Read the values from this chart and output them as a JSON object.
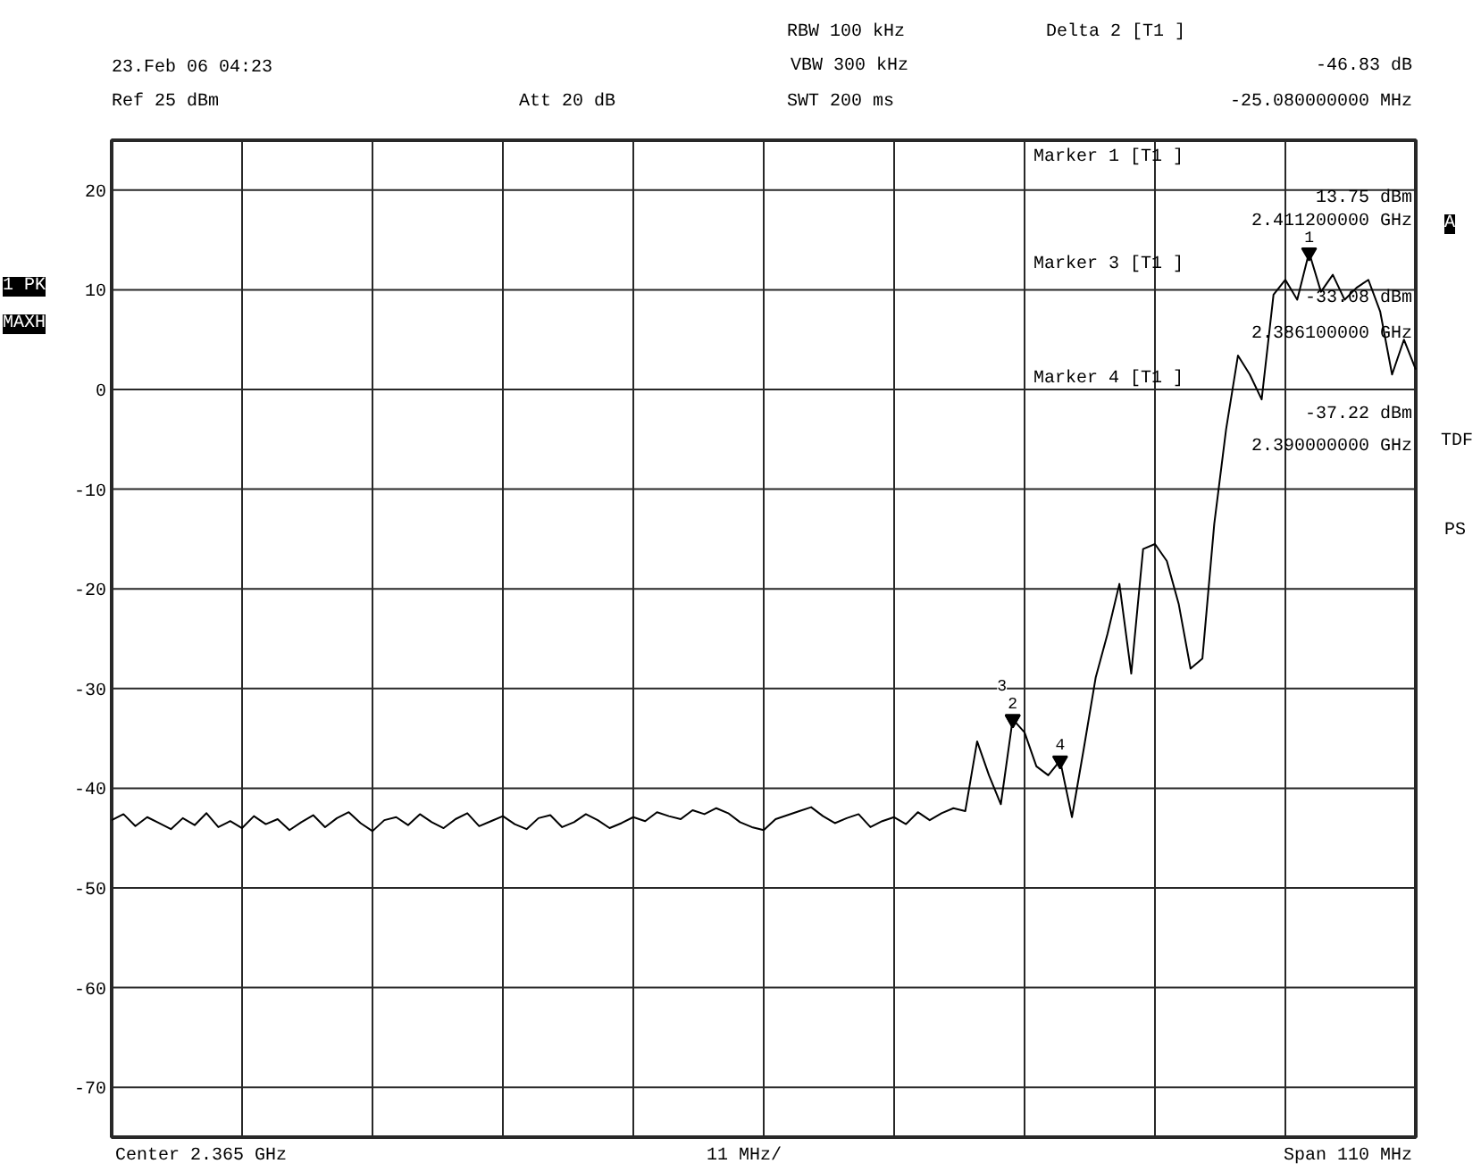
{
  "chart_data": {
    "type": "line",
    "categories": [
      null,
      null,
      null,
      null,
      null,
      null,
      null,
      null,
      null,
      null,
      null,
      null,
      null,
      null,
      null,
      null,
      null,
      null,
      null,
      null,
      null,
      null,
      null,
      null,
      null,
      null,
      null,
      null,
      null,
      null,
      null,
      null,
      null,
      null,
      null,
      null,
      null,
      null,
      null,
      null,
      null,
      null,
      null,
      null,
      null,
      null,
      null,
      null,
      null,
      null,
      null,
      null,
      null,
      null,
      null,
      null,
      null,
      null,
      null,
      null,
      null,
      null,
      null,
      null,
      null,
      null,
      null,
      null,
      null,
      null,
      null,
      null,
      null,
      null,
      null,
      null,
      null,
      null,
      null,
      null,
      null,
      null,
      null,
      null,
      null,
      null,
      null,
      null,
      null,
      null,
      null,
      null,
      null,
      null,
      null,
      null,
      null,
      null,
      null,
      null,
      null,
      null,
      null,
      null,
      null,
      null,
      null,
      null,
      null,
      null,
      null
    ],
    "series": [
      {
        "color": "#000000",
        "values": [
          -43.2,
          -42.6,
          -43.8,
          -42.9,
          -43.5,
          -44.1,
          -43.0,
          -43.7,
          -42.5,
          -43.9,
          -43.3,
          -44.0,
          -42.8,
          -43.6,
          -43.1,
          -44.2,
          -43.4,
          -42.7,
          -43.9,
          -43.0,
          -42.4,
          -43.5,
          -44.3,
          -43.2,
          -42.9,
          -43.7,
          -42.6,
          -43.4,
          -44.0,
          -43.1,
          -42.5,
          -43.8,
          -43.3,
          -42.8,
          -43.6,
          -44.1,
          -43.0,
          -42.7,
          -43.9,
          -43.4,
          -42.6,
          -43.2,
          -44.0,
          -43.5,
          -42.9,
          -43.3,
          -42.4,
          -42.8,
          -43.1,
          -42.2,
          -42.6,
          -42.0,
          -42.5,
          -43.4,
          -43.9,
          -44.2,
          -43.1,
          -42.7,
          -42.3,
          -41.9,
          -42.8,
          -43.5,
          -43.0,
          -42.6,
          -43.9,
          -43.3,
          -42.9,
          -43.6,
          -42.4,
          -43.2,
          -42.5,
          -42.0,
          -42.3,
          -35.3,
          -38.7,
          -41.6,
          -33.08,
          -34.4,
          -37.8,
          -38.7,
          -37.22,
          -42.9,
          -36.0,
          -28.9,
          -24.5,
          -19.5,
          -28.5,
          -16.0,
          -15.5,
          -17.2,
          -21.5,
          -28.0,
          -27.0,
          -13.5,
          -4.0,
          3.4,
          1.5,
          -1.0,
          9.5,
          11.0,
          9.0,
          13.75,
          9.8,
          11.5,
          9.0,
          10.2,
          11.0,
          7.8,
          1.5,
          5.0,
          2.0
        ]
      }
    ],
    "ylim": [
      -75,
      25
    ],
    "yticks": [
      -70,
      -60,
      -50,
      -40,
      -30,
      -20,
      -10,
      0,
      10,
      20
    ],
    "tick_labels": "y",
    "grid": true,
    "marker": "none",
    "line_style": "solid",
    "annotations": [
      {
        "text": "1",
        "y": 13.75
      },
      {
        "text": "2",
        "y": -33.08
      },
      {
        "text": "3",
        "y": -33.08
      },
      {
        "text": "4",
        "y": -37.22
      },
      "23.Feb 06 04:23",
      "Ref 25 dBm",
      "Att 20 dB",
      "RBW 100 kHz",
      "VBW 300 kHz",
      "SWT 200 ms",
      "Delta 2 [T1 ]",
      "-46.83 dB",
      "-25.080000000 MHz",
      "Marker 1 [T1 ]",
      "13.75 dBm",
      "2.411200000 GHz",
      "Marker 3 [T1 ]",
      "-33.08 dBm",
      "2.386100000 GHz",
      "Marker 4 [T1 ]",
      "-37.22 dBm",
      "2.390000000 GHz",
      "Center 2.365 GHz",
      "11 MHz/",
      "Span 110 MHz",
      "1 PK",
      "MAXH",
      "A",
      "TDF",
      "PS"
    ]
  }
}
